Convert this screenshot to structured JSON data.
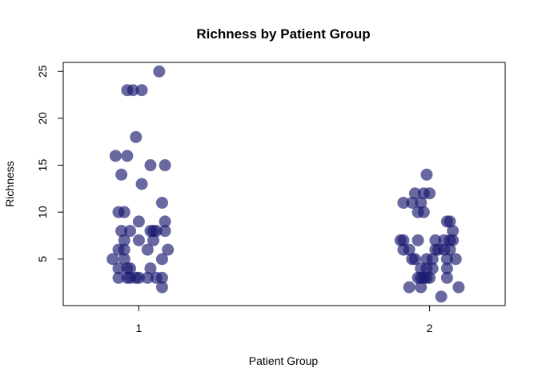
{
  "chart_data": {
    "type": "scatter",
    "title": "Richness by Patient Group",
    "xlabel": "Patient Group",
    "ylabel": "Richness",
    "x_ticks": [
      "1",
      "2"
    ],
    "y_ticks": [
      "5",
      "10",
      "15",
      "20",
      "25"
    ],
    "xlim": [
      0.74,
      2.26
    ],
    "ylim": [
      0.04,
      25.96
    ],
    "grid": false,
    "marker_color": "#191970",
    "marker_opacity": 0.65,
    "points": [
      {
        "x": 1.07,
        "y": 25
      },
      {
        "x": 0.96,
        "y": 23
      },
      {
        "x": 0.98,
        "y": 23
      },
      {
        "x": 1.01,
        "y": 23
      },
      {
        "x": 0.99,
        "y": 18
      },
      {
        "x": 0.92,
        "y": 16
      },
      {
        "x": 0.96,
        "y": 16
      },
      {
        "x": 1.04,
        "y": 15
      },
      {
        "x": 1.09,
        "y": 15
      },
      {
        "x": 0.94,
        "y": 14
      },
      {
        "x": 1.01,
        "y": 13
      },
      {
        "x": 1.08,
        "y": 11
      },
      {
        "x": 0.93,
        "y": 10
      },
      {
        "x": 0.95,
        "y": 10
      },
      {
        "x": 1.0,
        "y": 9
      },
      {
        "x": 1.09,
        "y": 9
      },
      {
        "x": 0.94,
        "y": 8
      },
      {
        "x": 0.97,
        "y": 8
      },
      {
        "x": 1.04,
        "y": 8
      },
      {
        "x": 1.05,
        "y": 8
      },
      {
        "x": 1.06,
        "y": 8
      },
      {
        "x": 1.09,
        "y": 8
      },
      {
        "x": 0.95,
        "y": 7
      },
      {
        "x": 1.0,
        "y": 7
      },
      {
        "x": 1.05,
        "y": 7
      },
      {
        "x": 0.93,
        "y": 6
      },
      {
        "x": 0.95,
        "y": 6
      },
      {
        "x": 1.03,
        "y": 6
      },
      {
        "x": 1.1,
        "y": 6
      },
      {
        "x": 0.91,
        "y": 5
      },
      {
        "x": 0.95,
        "y": 5
      },
      {
        "x": 1.08,
        "y": 5
      },
      {
        "x": 0.93,
        "y": 4
      },
      {
        "x": 0.96,
        "y": 4
      },
      {
        "x": 0.97,
        "y": 4
      },
      {
        "x": 1.04,
        "y": 4
      },
      {
        "x": 0.93,
        "y": 3
      },
      {
        "x": 0.96,
        "y": 3
      },
      {
        "x": 0.97,
        "y": 3
      },
      {
        "x": 0.99,
        "y": 3
      },
      {
        "x": 1.0,
        "y": 3
      },
      {
        "x": 1.03,
        "y": 3
      },
      {
        "x": 1.06,
        "y": 3
      },
      {
        "x": 1.08,
        "y": 3
      },
      {
        "x": 1.08,
        "y": 2
      },
      {
        "x": 1.99,
        "y": 14
      },
      {
        "x": 1.95,
        "y": 12
      },
      {
        "x": 1.98,
        "y": 12
      },
      {
        "x": 2.0,
        "y": 12
      },
      {
        "x": 1.91,
        "y": 11
      },
      {
        "x": 1.94,
        "y": 11
      },
      {
        "x": 1.97,
        "y": 11
      },
      {
        "x": 1.96,
        "y": 10
      },
      {
        "x": 1.98,
        "y": 10
      },
      {
        "x": 2.06,
        "y": 9
      },
      {
        "x": 2.07,
        "y": 9
      },
      {
        "x": 2.08,
        "y": 8
      },
      {
        "x": 1.9,
        "y": 7
      },
      {
        "x": 1.91,
        "y": 7
      },
      {
        "x": 1.96,
        "y": 7
      },
      {
        "x": 2.02,
        "y": 7
      },
      {
        "x": 2.05,
        "y": 7
      },
      {
        "x": 2.07,
        "y": 7
      },
      {
        "x": 2.08,
        "y": 7
      },
      {
        "x": 1.91,
        "y": 6
      },
      {
        "x": 1.93,
        "y": 6
      },
      {
        "x": 2.02,
        "y": 6
      },
      {
        "x": 2.03,
        "y": 6
      },
      {
        "x": 2.05,
        "y": 6
      },
      {
        "x": 2.07,
        "y": 6
      },
      {
        "x": 1.94,
        "y": 5
      },
      {
        "x": 1.95,
        "y": 5
      },
      {
        "x": 1.99,
        "y": 5
      },
      {
        "x": 2.01,
        "y": 5
      },
      {
        "x": 2.06,
        "y": 5
      },
      {
        "x": 2.09,
        "y": 5
      },
      {
        "x": 1.97,
        "y": 4
      },
      {
        "x": 1.99,
        "y": 4
      },
      {
        "x": 2.01,
        "y": 4
      },
      {
        "x": 2.06,
        "y": 4
      },
      {
        "x": 1.96,
        "y": 3
      },
      {
        "x": 1.97,
        "y": 3
      },
      {
        "x": 1.98,
        "y": 3
      },
      {
        "x": 1.99,
        "y": 3
      },
      {
        "x": 2.0,
        "y": 3
      },
      {
        "x": 2.06,
        "y": 3
      },
      {
        "x": 1.93,
        "y": 2
      },
      {
        "x": 1.97,
        "y": 2
      },
      {
        "x": 2.1,
        "y": 2
      },
      {
        "x": 2.04,
        "y": 1
      }
    ]
  }
}
